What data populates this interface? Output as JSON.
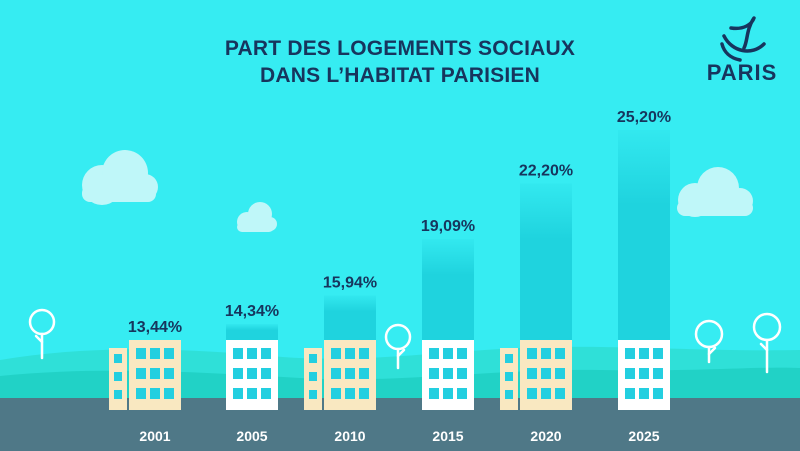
{
  "header": {
    "title_line1": "PART DES LOGEMENTS SOCIAUX",
    "title_line2": "DANS L’HABITAT PARISIEN"
  },
  "logo": {
    "text": "PARIS",
    "icon": "paris-ship-logo"
  },
  "colors": {
    "sky": "#36ecf2",
    "text_dark": "#17355d",
    "column": "#1fd3de",
    "ground": "#4f7887",
    "hills": "#26d9cc",
    "building_beige": "#f9e8c1",
    "building_white": "#ffffff",
    "window": "#23cfe0"
  },
  "chart_data": {
    "type": "bar",
    "title": "PART DES LOGEMENTS SOCIAUX DANS L’HABITAT PARISIEN",
    "categories": [
      "2001",
      "2005",
      "2010",
      "2015",
      "2020",
      "2025"
    ],
    "values": [
      13.44,
      14.34,
      15.94,
      19.09,
      22.2,
      25.2
    ],
    "labels": [
      "13,44%",
      "14,34%",
      "15,94%",
      "19,09%",
      "22,20%",
      "25,20%"
    ],
    "building_style": [
      "beige",
      "white",
      "beige",
      "white",
      "beige",
      "white"
    ],
    "ylim": [
      13.44,
      25.2
    ],
    "grid": false,
    "legend": "none"
  }
}
